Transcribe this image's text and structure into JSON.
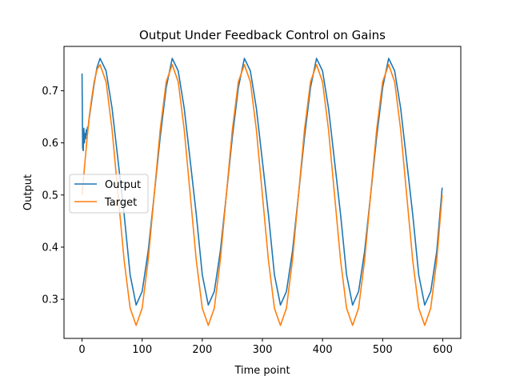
{
  "chart_data": {
    "type": "line",
    "title": "Output Under Feedback Control on Gains",
    "xlabel": "Time point",
    "ylabel": "Output",
    "xlim": [
      -30,
      630
    ],
    "ylim": [
      0.225,
      0.785
    ],
    "xticks": [
      0,
      100,
      200,
      300,
      400,
      500,
      600
    ],
    "xtick_labels": [
      "0",
      "100",
      "200",
      "300",
      "400",
      "500",
      "600"
    ],
    "yticks": [
      0.3,
      0.4,
      0.5,
      0.6,
      0.7
    ],
    "ytick_labels": [
      "0.3",
      "0.4",
      "0.5",
      "0.6",
      "0.7"
    ],
    "grid": false,
    "legend_position": "center-left",
    "series": [
      {
        "name": "Output",
        "color": "#1f77b4",
        "x": [
          0,
          1,
          2,
          3,
          4,
          5,
          6,
          7,
          8,
          9,
          10,
          12,
          15,
          20,
          25,
          30,
          40,
          50,
          60,
          70,
          80,
          90,
          100,
          110,
          120,
          130,
          140,
          150,
          160,
          170,
          180,
          190,
          200,
          210,
          220,
          230,
          240,
          250,
          260,
          270,
          280,
          290,
          300,
          310,
          320,
          330,
          340,
          350,
          360,
          370,
          380,
          390,
          400,
          410,
          420,
          430,
          440,
          450,
          460,
          470,
          480,
          490,
          500,
          510,
          520,
          530,
          540,
          550,
          560,
          570,
          580,
          590,
          599
        ],
        "y": [
          0.733,
          0.59,
          0.585,
          0.628,
          0.6,
          0.618,
          0.608,
          0.625,
          0.615,
          0.63,
          0.627,
          0.648,
          0.672,
          0.712,
          0.745,
          0.762,
          0.738,
          0.666,
          0.565,
          0.463,
          0.347,
          0.289,
          0.315,
          0.392,
          0.5,
          0.611,
          0.706,
          0.762,
          0.738,
          0.666,
          0.565,
          0.463,
          0.347,
          0.289,
          0.315,
          0.392,
          0.5,
          0.611,
          0.706,
          0.762,
          0.738,
          0.666,
          0.565,
          0.463,
          0.347,
          0.289,
          0.315,
          0.392,
          0.5,
          0.611,
          0.706,
          0.762,
          0.738,
          0.666,
          0.565,
          0.463,
          0.347,
          0.289,
          0.315,
          0.392,
          0.5,
          0.611,
          0.706,
          0.762,
          0.738,
          0.666,
          0.565,
          0.463,
          0.347,
          0.289,
          0.315,
          0.392,
          0.514
        ]
      },
      {
        "name": "Target",
        "color": "#ff7f0e",
        "x": [
          0,
          1,
          2,
          3,
          4,
          5,
          6,
          7,
          8,
          9,
          10,
          12,
          15,
          20,
          25,
          30,
          40,
          50,
          60,
          70,
          80,
          90,
          100,
          110,
          120,
          130,
          140,
          150,
          160,
          170,
          180,
          190,
          200,
          210,
          220,
          230,
          240,
          250,
          260,
          270,
          280,
          290,
          300,
          310,
          320,
          330,
          340,
          350,
          360,
          370,
          380,
          390,
          400,
          410,
          420,
          430,
          440,
          450,
          460,
          470,
          480,
          490,
          500,
          510,
          520,
          530,
          540,
          550,
          560,
          570,
          580,
          590,
          599
        ],
        "y": [
          0.5,
          0.513,
          0.526,
          0.539,
          0.552,
          0.565,
          0.578,
          0.591,
          0.603,
          0.615,
          0.627,
          0.65,
          0.677,
          0.716,
          0.741,
          0.75,
          0.717,
          0.625,
          0.5,
          0.375,
          0.283,
          0.25,
          0.283,
          0.375,
          0.5,
          0.625,
          0.717,
          0.75,
          0.717,
          0.625,
          0.5,
          0.375,
          0.283,
          0.25,
          0.283,
          0.375,
          0.5,
          0.625,
          0.717,
          0.75,
          0.717,
          0.625,
          0.5,
          0.375,
          0.283,
          0.25,
          0.283,
          0.375,
          0.5,
          0.625,
          0.717,
          0.75,
          0.717,
          0.625,
          0.5,
          0.375,
          0.283,
          0.25,
          0.283,
          0.375,
          0.5,
          0.625,
          0.717,
          0.75,
          0.717,
          0.625,
          0.5,
          0.375,
          0.283,
          0.25,
          0.283,
          0.375,
          0.5
        ]
      }
    ]
  }
}
